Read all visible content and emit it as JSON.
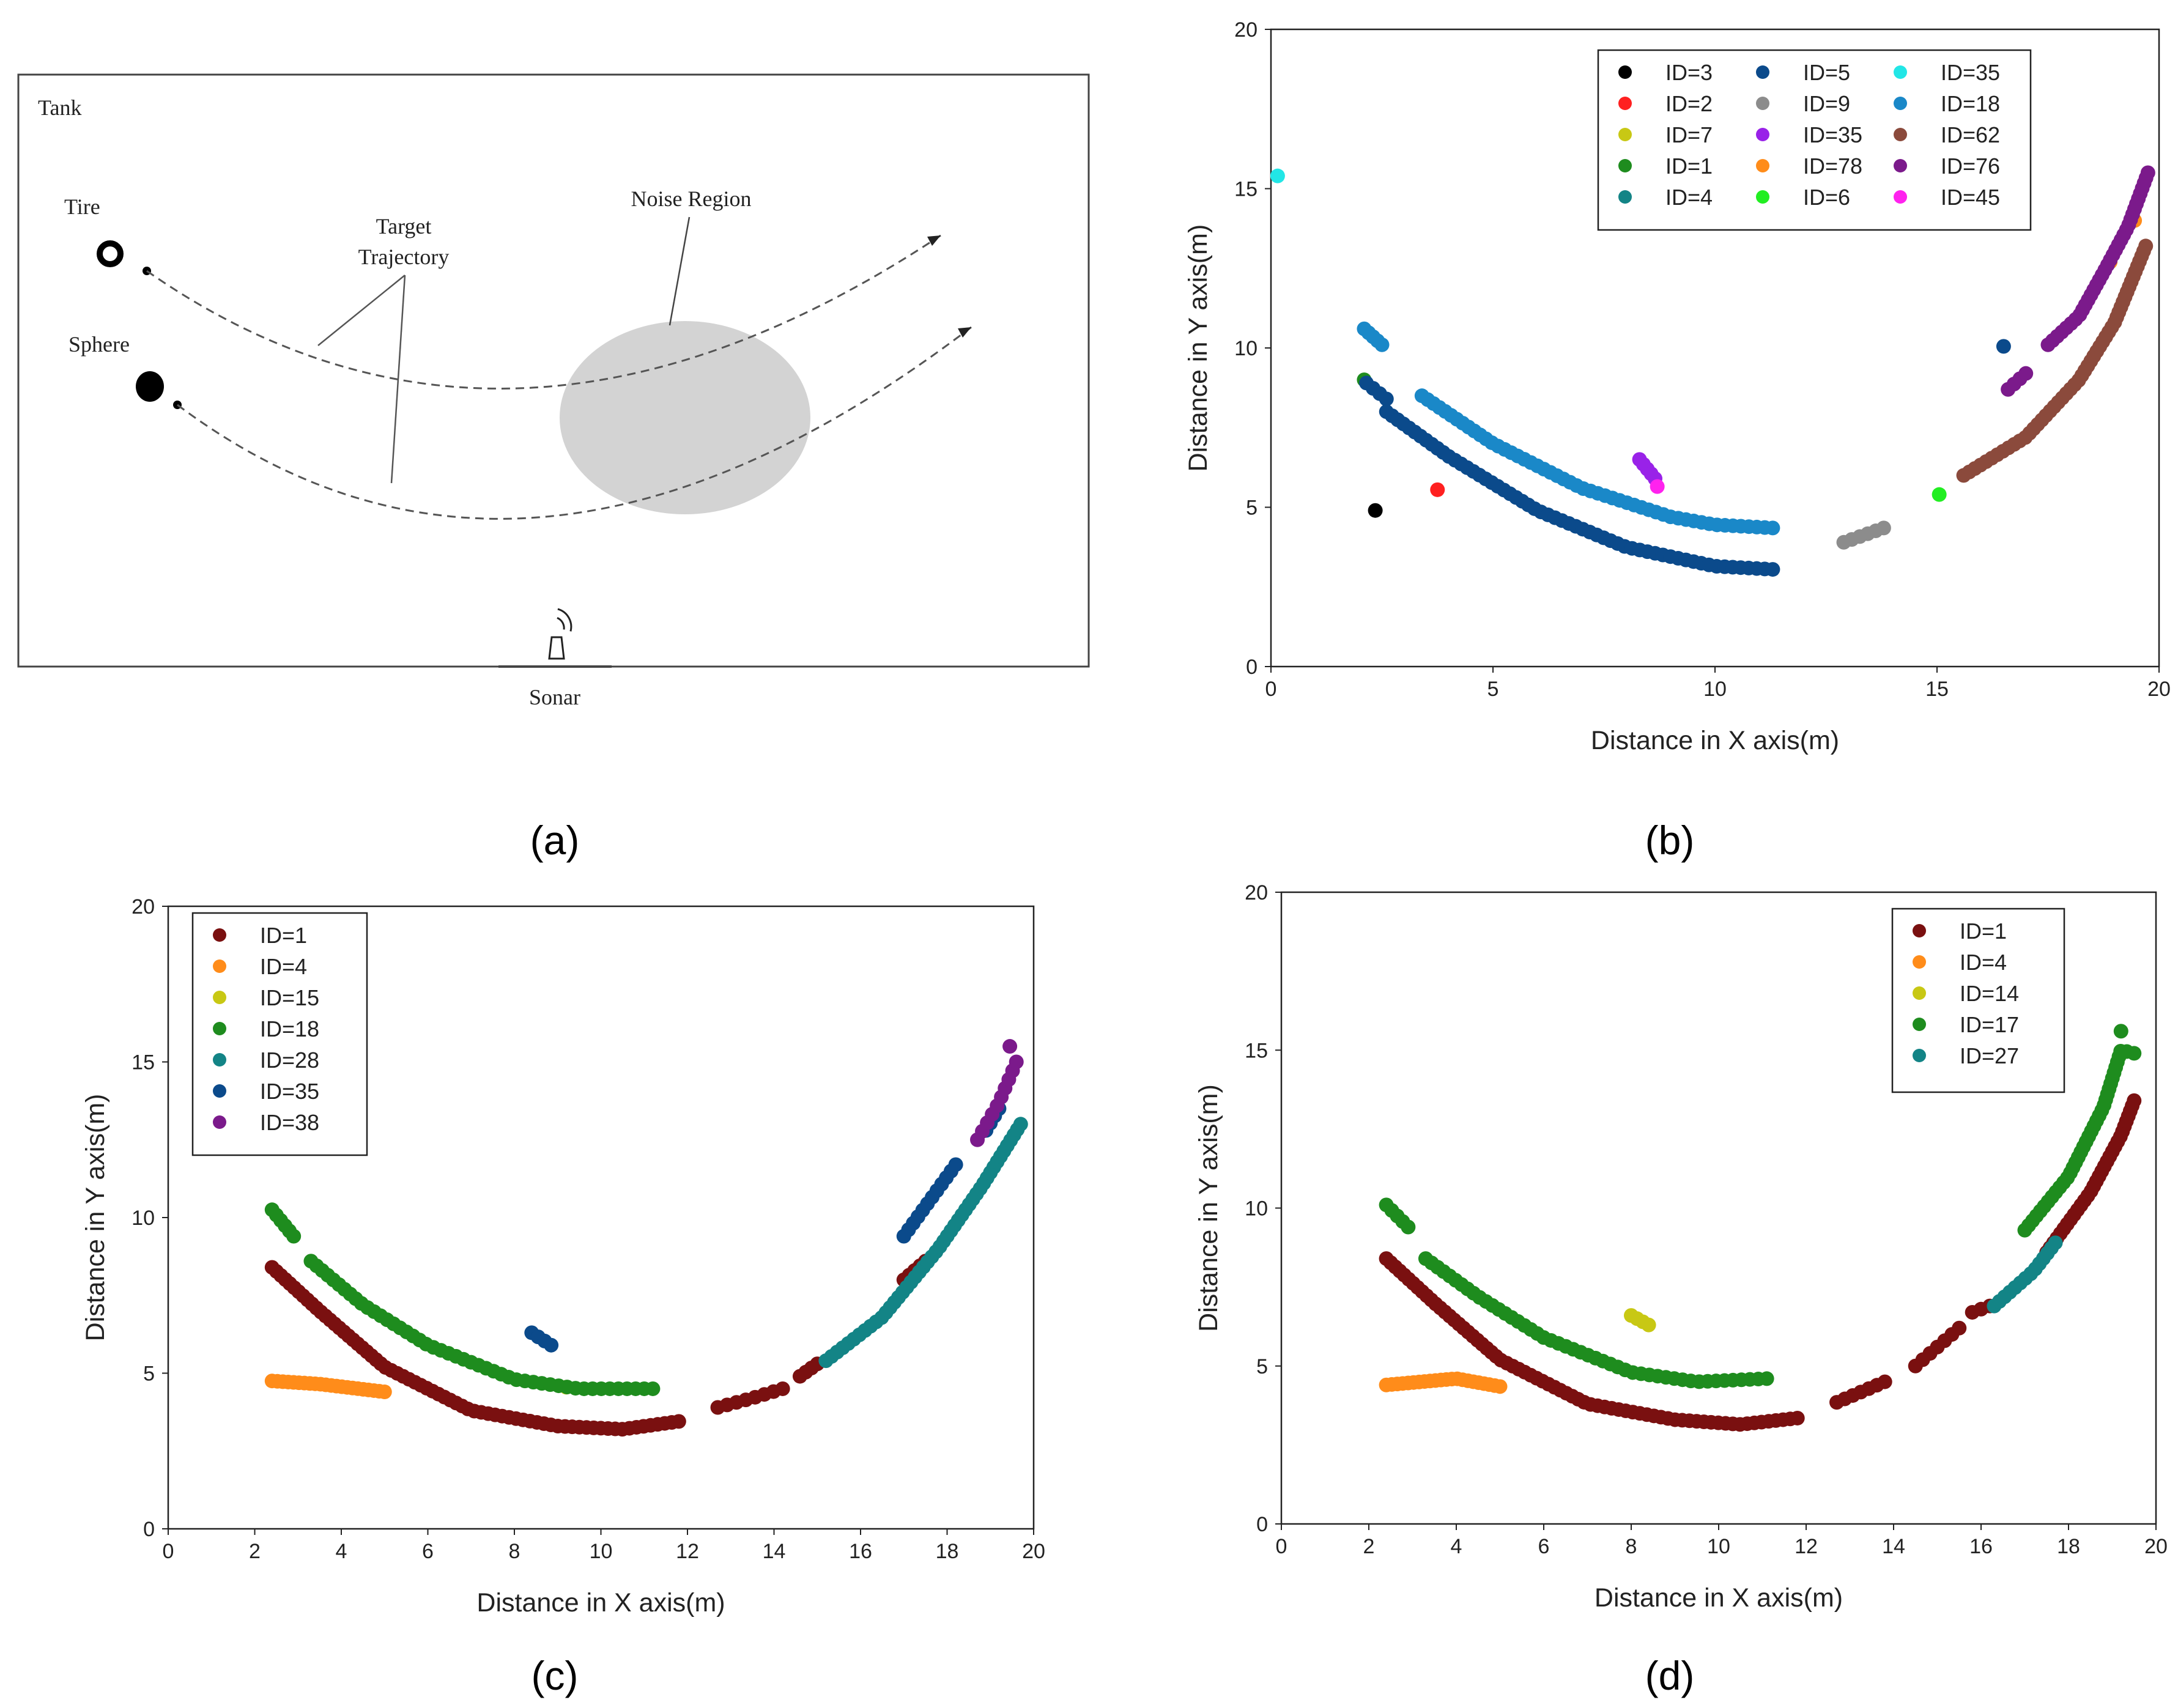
{
  "panel_labels": {
    "a": "(a)",
    "b": "(b)",
    "c": "(c)",
    "d": "(d)"
  },
  "schematic": {
    "tank_label": "Tank",
    "tire_label": "Tire",
    "sphere_label": "Sphere",
    "trajectory_label_line1": "Target",
    "trajectory_label_line2": "Trajectory",
    "noise_label": "Noise Region",
    "sonar_label": "Sonar",
    "colors": {
      "noise_fill": "#d3d3d3",
      "line": "#555555",
      "border": "#444444"
    }
  },
  "chart_data": [
    {
      "panel": "b",
      "type": "scatter",
      "xlabel": "Distance in X axis(m)",
      "ylabel": "Distance in Y axis(m)",
      "xlim": [
        0,
        20
      ],
      "ylim": [
        0,
        20
      ],
      "xticks": [
        0,
        5,
        10,
        15,
        20
      ],
      "yticks": [
        0,
        5,
        10,
        15,
        20
      ],
      "legend_position": "top-right",
      "legend_columns": 3,
      "series": [
        {
          "name": "ID=3",
          "color": "#000000",
          "segments": [
            {
              "points": [
                [
                  2.35,
                  4.9
                ]
              ],
              "n": 1
            }
          ]
        },
        {
          "name": "ID=2",
          "color": "#ff2020",
          "segments": [
            {
              "points": [
                [
                  3.75,
                  5.55
                ]
              ],
              "n": 1
            }
          ]
        },
        {
          "name": "ID=7",
          "color": "#c8c814",
          "segments": []
        },
        {
          "name": "ID=1",
          "color": "#1e8c1e",
          "segments": [
            {
              "points": [
                [
                  2.1,
                  9.0
                ]
              ],
              "n": 1
            }
          ]
        },
        {
          "name": "ID=4",
          "color": "#138486",
          "segments": []
        },
        {
          "name": "ID=5",
          "color": "#0b4a8b",
          "segments": [
            {
              "points": [
                [
                  2.15,
                  8.9
                ],
                [
                  2.6,
                  8.4
                ]
              ],
              "n": 4
            },
            {
              "points": [
                [
                  2.6,
                  8.0
                ],
                [
                  4.0,
                  6.6
                ],
                [
                  6.0,
                  4.9
                ],
                [
                  8.0,
                  3.75
                ],
                [
                  10.0,
                  3.15
                ],
                [
                  11.3,
                  3.05
                ]
              ],
              "n": 58
            },
            {
              "points": [
                [
                  16.5,
                  10.05
                ]
              ],
              "n": 1
            }
          ]
        },
        {
          "name": "ID=9",
          "color": "#8c8c8c",
          "segments": [
            {
              "points": [
                [
                  12.9,
                  3.9
                ],
                [
                  13.8,
                  4.35
                ]
              ],
              "n": 6
            }
          ]
        },
        {
          "name": "ID=35",
          "color": "#9922e8",
          "segments": [
            {
              "points": [
                [
                  8.3,
                  6.5
                ],
                [
                  8.65,
                  5.9
                ]
              ],
              "n": 5
            }
          ]
        },
        {
          "name": "ID=78",
          "color": "#ff8c1a",
          "segments": [
            {
              "points": [
                [
                  18.9,
                  12.7
                ]
              ],
              "n": 1
            },
            {
              "points": [
                [
                  19.45,
                  14.0
                ]
              ],
              "n": 1
            }
          ]
        },
        {
          "name": "ID=6",
          "color": "#22ee22",
          "segments": [
            {
              "points": [
                [
                  15.05,
                  5.4
                ]
              ],
              "n": 1
            }
          ]
        },
        {
          "name": "ID=35",
          "color": "#22e6e6",
          "segments": [
            {
              "points": [
                [
                  0.15,
                  15.4
                ]
              ],
              "n": 1
            }
          ]
        },
        {
          "name": "ID=18",
          "color": "#1a88c8",
          "segments": [
            {
              "points": [
                [
                  2.1,
                  10.6
                ],
                [
                  2.5,
                  10.1
                ]
              ],
              "n": 5
            },
            {
              "points": [
                [
                  3.4,
                  8.5
                ],
                [
                  5.0,
                  7.0
                ],
                [
                  7.0,
                  5.6
                ],
                [
                  9.0,
                  4.7
                ],
                [
                  10.0,
                  4.45
                ],
                [
                  11.3,
                  4.35
                ]
              ],
              "n": 52
            }
          ]
        },
        {
          "name": "ID=62",
          "color": "#8b4a3c",
          "segments": [
            {
              "points": [
                [
                  15.6,
                  6.0
                ],
                [
                  17.0,
                  7.2
                ],
                [
                  18.2,
                  9.0
                ],
                [
                  19.0,
                  10.8
                ],
                [
                  19.7,
                  13.2
                ]
              ],
              "n": 52
            }
          ]
        },
        {
          "name": "ID=76",
          "color": "#7b1a8b",
          "segments": [
            {
              "points": [
                [
                  16.6,
                  8.7
                ],
                [
                  17.0,
                  9.2
                ]
              ],
              "n": 4
            },
            {
              "points": [
                [
                  17.5,
                  10.1
                ],
                [
                  18.2,
                  11.0
                ],
                [
                  18.8,
                  12.5
                ],
                [
                  19.3,
                  13.8
                ],
                [
                  19.75,
                  15.5
                ]
              ],
              "n": 36
            }
          ]
        },
        {
          "name": "ID=45",
          "color": "#ff22ee",
          "segments": [
            {
              "points": [
                [
                  8.7,
                  5.65
                ]
              ],
              "n": 1
            }
          ]
        }
      ]
    },
    {
      "panel": "c",
      "type": "scatter",
      "xlabel": "Distance in X axis(m)",
      "ylabel": "Distance in Y axis(m)",
      "xlim": [
        0,
        20
      ],
      "ylim": [
        0,
        20
      ],
      "xticks": [
        0,
        2,
        4,
        6,
        8,
        10,
        12,
        14,
        16,
        18,
        20
      ],
      "yticks": [
        0,
        5,
        10,
        15,
        20
      ],
      "legend_position": "top-left",
      "legend_columns": 1,
      "series": [
        {
          "name": "ID=1",
          "color": "#7a1010",
          "segments": [
            {
              "points": [
                [
                  2.4,
                  8.4
                ],
                [
                  3.5,
                  7.0
                ],
                [
                  5.0,
                  5.2
                ],
                [
                  7.0,
                  3.8
                ],
                [
                  9.0,
                  3.3
                ],
                [
                  10.5,
                  3.2
                ],
                [
                  11.8,
                  3.45
                ]
              ],
              "n": 70
            },
            {
              "points": [
                [
                  12.7,
                  3.9
                ],
                [
                  13.5,
                  4.2
                ],
                [
                  14.2,
                  4.5
                ]
              ],
              "n": 8
            },
            {
              "points": [
                [
                  14.6,
                  4.9
                ],
                [
                  15.0,
                  5.3
                ]
              ],
              "n": 4
            },
            {
              "points": [
                [
                  17.0,
                  8.0
                ],
                [
                  17.5,
                  8.6
                ]
              ],
              "n": 5
            }
          ]
        },
        {
          "name": "ID=4",
          "color": "#ff8c1a",
          "segments": [
            {
              "points": [
                [
                  2.4,
                  4.75
                ],
                [
                  3.5,
                  4.65
                ],
                [
                  5.0,
                  4.4
                ]
              ],
              "n": 22
            }
          ]
        },
        {
          "name": "ID=15",
          "color": "#c8c814",
          "segments": [
            {
              "points": [
                [
                  9.2,
                  4.55
                ]
              ],
              "n": 1
            }
          ]
        },
        {
          "name": "ID=18",
          "color": "#1e8c1e",
          "segments": [
            {
              "points": [
                [
                  2.4,
                  10.25
                ],
                [
                  2.9,
                  9.4
                ]
              ],
              "n": 6
            },
            {
              "points": [
                [
                  3.3,
                  8.6
                ],
                [
                  4.5,
                  7.2
                ],
                [
                  6.0,
                  5.9
                ],
                [
                  8.0,
                  4.8
                ],
                [
                  9.5,
                  4.5
                ],
                [
                  11.2,
                  4.5
                ]
              ],
              "n": 48
            }
          ]
        },
        {
          "name": "ID=28",
          "color": "#138486",
          "segments": [
            {
              "points": [
                [
                  15.2,
                  5.4
                ],
                [
                  16.5,
                  6.8
                ],
                [
                  17.8,
                  9.0
                ],
                [
                  18.8,
                  11.0
                ],
                [
                  19.7,
                  13.0
                ]
              ],
              "n": 48
            }
          ]
        },
        {
          "name": "ID=35",
          "color": "#0b4a8b",
          "segments": [
            {
              "points": [
                [
                  8.4,
                  6.3
                ],
                [
                  8.85,
                  5.9
                ]
              ],
              "n": 4
            },
            {
              "points": [
                [
                  17.0,
                  9.4
                ],
                [
                  18.2,
                  11.7
                ]
              ],
              "n": 12
            },
            {
              "points": [
                [
                  18.9,
                  12.8
                ],
                [
                  19.2,
                  13.5
                ]
              ],
              "n": 4
            }
          ]
        },
        {
          "name": "ID=38",
          "color": "#7b1a8b",
          "segments": [
            {
              "points": [
                [
                  18.7,
                  12.5
                ],
                [
                  19.2,
                  13.7
                ],
                [
                  19.6,
                  15.0
                ]
              ],
              "n": 10
            },
            {
              "points": [
                [
                  19.45,
                  15.5
                ]
              ],
              "n": 1
            }
          ]
        }
      ]
    },
    {
      "panel": "d",
      "type": "scatter",
      "xlabel": "Distance in X axis(m)",
      "ylabel": "Distance in Y axis(m)",
      "xlim": [
        0,
        20
      ],
      "ylim": [
        0,
        20
      ],
      "xticks": [
        0,
        2,
        4,
        6,
        8,
        10,
        12,
        14,
        16,
        18,
        20
      ],
      "yticks": [
        0,
        5,
        10,
        15,
        20
      ],
      "legend_position": "top-right",
      "legend_columns": 1,
      "series": [
        {
          "name": "ID=1",
          "color": "#7a1010",
          "segments": [
            {
              "points": [
                [
                  2.4,
                  8.4
                ],
                [
                  3.5,
                  7.0
                ],
                [
                  5.0,
                  5.2
                ],
                [
                  7.0,
                  3.8
                ],
                [
                  9.0,
                  3.3
                ],
                [
                  10.5,
                  3.15
                ],
                [
                  11.8,
                  3.35
                ]
              ],
              "n": 70
            },
            {
              "points": [
                [
                  12.7,
                  3.85
                ],
                [
                  13.8,
                  4.5
                ]
              ],
              "n": 7
            },
            {
              "points": [
                [
                  14.5,
                  5.0
                ],
                [
                  15.5,
                  6.2
                ]
              ],
              "n": 7
            },
            {
              "points": [
                [
                  15.8,
                  6.7
                ],
                [
                  16.2,
                  6.9
                ]
              ],
              "n": 3
            },
            {
              "points": [
                [
                  17.5,
                  8.6
                ],
                [
                  18.5,
                  10.5
                ],
                [
                  19.2,
                  12.3
                ],
                [
                  19.5,
                  13.4
                ]
              ],
              "n": 32
            }
          ]
        },
        {
          "name": "ID=4",
          "color": "#ff8c1a",
          "segments": [
            {
              "points": [
                [
                  2.4,
                  4.4
                ],
                [
                  4.0,
                  4.6
                ],
                [
                  5.0,
                  4.35
                ]
              ],
              "n": 22
            }
          ]
        },
        {
          "name": "ID=14",
          "color": "#c8c814",
          "segments": [
            {
              "points": [
                [
                  8.0,
                  6.6
                ],
                [
                  8.4,
                  6.3
                ]
              ],
              "n": 4
            }
          ]
        },
        {
          "name": "ID=17",
          "color": "#1e8c1e",
          "segments": [
            {
              "points": [
                [
                  2.4,
                  10.1
                ],
                [
                  2.9,
                  9.4
                ]
              ],
              "n": 5
            },
            {
              "points": [
                [
                  3.3,
                  8.4
                ],
                [
                  4.5,
                  7.2
                ],
                [
                  6.0,
                  5.9
                ],
                [
                  8.0,
                  4.8
                ],
                [
                  9.5,
                  4.5
                ],
                [
                  11.1,
                  4.6
                ]
              ],
              "n": 48
            },
            {
              "points": [
                [
                  17.0,
                  9.3
                ],
                [
                  18.0,
                  11.0
                ],
                [
                  18.8,
                  13.2
                ],
                [
                  19.2,
                  15.0
                ],
                [
                  19.5,
                  14.9
                ]
              ],
              "n": 38
            },
            {
              "points": [
                [
                  19.2,
                  15.6
                ]
              ],
              "n": 1
            }
          ]
        },
        {
          "name": "ID=27",
          "color": "#138486",
          "segments": [
            {
              "points": [
                [
                  16.3,
                  6.9
                ],
                [
                  17.2,
                  8.0
                ],
                [
                  17.7,
                  8.9
                ]
              ],
              "n": 14
            }
          ]
        }
      ]
    }
  ]
}
